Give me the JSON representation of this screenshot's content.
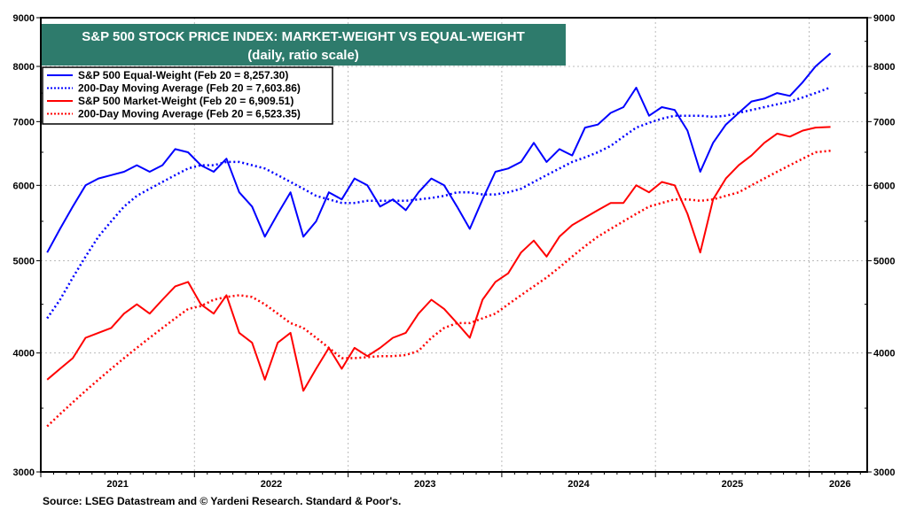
{
  "chart_data": {
    "type": "line",
    "title": "S&P 500 STOCK PRICE INDEX: MARKET-WEIGHT VS EQUAL-WEIGHT",
    "subtitle": "(daily, ratio scale)",
    "source": "Source: LSEG Datastream and © Yardeni Research. Standard & Poor's.",
    "y_scale": "log",
    "ylim": [
      3000,
      9000
    ],
    "y_ticks": [
      "3000",
      "4000",
      "5000",
      "6000",
      "7000",
      "8000",
      "9000"
    ],
    "x_ticks": [
      "2021",
      "2022",
      "2023",
      "2024",
      "2025",
      "2026"
    ],
    "xlim": [
      "2021-01-01",
      "2026-04-01"
    ],
    "grid": true,
    "legend_placement": "top-left",
    "x": [
      "2021-01",
      "2021-02",
      "2021-03",
      "2021-04",
      "2021-05",
      "2021-06",
      "2021-07",
      "2021-08",
      "2021-09",
      "2021-10",
      "2021-11",
      "2021-12",
      "2022-01",
      "2022-02",
      "2022-03",
      "2022-04",
      "2022-05",
      "2022-06",
      "2022-07",
      "2022-08",
      "2022-09",
      "2022-10",
      "2022-11",
      "2022-12",
      "2023-01",
      "2023-02",
      "2023-03",
      "2023-04",
      "2023-05",
      "2023-06",
      "2023-07",
      "2023-08",
      "2023-09",
      "2023-10",
      "2023-11",
      "2023-12",
      "2024-01",
      "2024-02",
      "2024-03",
      "2024-04",
      "2024-05",
      "2024-06",
      "2024-07",
      "2024-08",
      "2024-09",
      "2024-10",
      "2024-11",
      "2024-12",
      "2025-01",
      "2025-02",
      "2025-03",
      "2025-04",
      "2025-05",
      "2025-06",
      "2025-07",
      "2025-08",
      "2025-09",
      "2025-10",
      "2025-11",
      "2025-12",
      "2026-01",
      "2026-02-20"
    ],
    "series": [
      {
        "name": "S&P 500 Equal-Weight (Feb 20 = 8,257.30)",
        "color": "#0000ff",
        "style": "solid",
        "values": [
          5100,
          5400,
          5700,
          6000,
          6100,
          6150,
          6200,
          6300,
          6200,
          6300,
          6550,
          6500,
          6300,
          6200,
          6400,
          5900,
          5700,
          5300,
          5600,
          5900,
          5300,
          5500,
          5900,
          5800,
          6100,
          6000,
          5700,
          5800,
          5650,
          5900,
          6100,
          6000,
          5700,
          5400,
          5800,
          6200,
          6250,
          6350,
          6650,
          6350,
          6550,
          6450,
          6900,
          6950,
          7150,
          7250,
          7600,
          7100,
          7250,
          7200,
          6850,
          6200,
          6650,
          6950,
          7150,
          7350,
          7400,
          7500,
          7450,
          7700,
          8000,
          8257.3
        ]
      },
      {
        "name": "200-Day Moving Average (Feb 20 = 7,603.86)",
        "color": "#0000ff",
        "style": "dotted",
        "values": [
          4350,
          4550,
          4800,
          5050,
          5300,
          5500,
          5700,
          5850,
          5950,
          6050,
          6150,
          6250,
          6300,
          6300,
          6350,
          6350,
          6300,
          6250,
          6150,
          6050,
          5950,
          5850,
          5800,
          5750,
          5750,
          5780,
          5780,
          5780,
          5780,
          5800,
          5820,
          5850,
          5900,
          5900,
          5870,
          5870,
          5900,
          5950,
          6050,
          6150,
          6250,
          6350,
          6420,
          6500,
          6600,
          6750,
          6900,
          6980,
          7050,
          7100,
          7100,
          7100,
          7080,
          7100,
          7150,
          7200,
          7250,
          7300,
          7350,
          7420,
          7500,
          7603.86
        ]
      },
      {
        "name": "S&P 500 Market-Weight (Feb 20 = 6,909.51)",
        "color": "#ff0000",
        "style": "solid",
        "values": [
          3750,
          3850,
          3950,
          4150,
          4200,
          4250,
          4400,
          4500,
          4400,
          4550,
          4700,
          4750,
          4500,
          4400,
          4600,
          4200,
          4100,
          3750,
          4100,
          4200,
          3650,
          3850,
          4050,
          3850,
          4050,
          3970,
          4050,
          4150,
          4200,
          4400,
          4550,
          4450,
          4300,
          4150,
          4550,
          4750,
          4850,
          5100,
          5250,
          5050,
          5300,
          5450,
          5550,
          5650,
          5750,
          5750,
          6000,
          5900,
          6050,
          6000,
          5600,
          5100,
          5800,
          6100,
          6300,
          6450,
          6650,
          6800,
          6750,
          6850,
          6900,
          6909.51
        ]
      },
      {
        "name": "200-Day Moving Average (Feb 20 = 6,523.35)",
        "color": "#ff0000",
        "style": "dotted",
        "values": [
          3350,
          3450,
          3550,
          3650,
          3750,
          3850,
          3950,
          4050,
          4150,
          4250,
          4350,
          4450,
          4480,
          4550,
          4580,
          4600,
          4580,
          4500,
          4400,
          4300,
          4250,
          4150,
          4050,
          3950,
          3950,
          3960,
          3970,
          3970,
          3980,
          4020,
          4150,
          4250,
          4300,
          4300,
          4350,
          4400,
          4500,
          4600,
          4700,
          4800,
          4920,
          5050,
          5180,
          5300,
          5400,
          5500,
          5600,
          5700,
          5750,
          5800,
          5800,
          5780,
          5800,
          5850,
          5900,
          6000,
          6100,
          6200,
          6300,
          6400,
          6500,
          6523.35
        ]
      }
    ]
  },
  "colors": {
    "title_bg": "#2e7b6c",
    "equal_weight": "#0000ff",
    "market_weight": "#ff0000"
  }
}
